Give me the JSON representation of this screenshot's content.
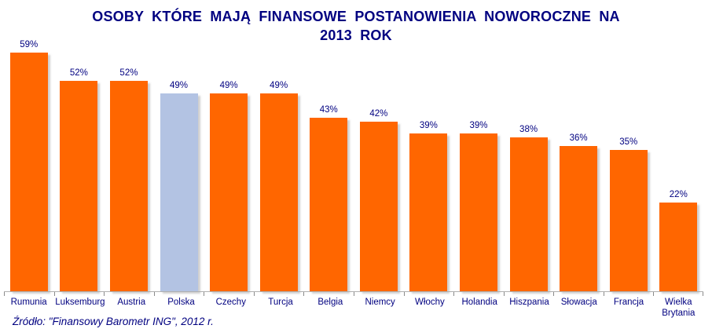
{
  "title": {
    "line1": "OSOBY KTÓRE MAJĄ FINANSOWE POSTANOWIENIA NOWOROCZNE NA",
    "line2": "2013 ROK"
  },
  "source_note": "Źródło: \"Finansowy Barometr ING\", 2012 r.",
  "colors": {
    "bar": "#FF6600",
    "highlighted_bar": "#B3C3E3",
    "text": "#000080",
    "axis": "#B0B0B0"
  },
  "chart_data": {
    "type": "bar",
    "title": "OSOBY KTÓRE MAJĄ FINANSOWE POSTANOWIENIA NOWOROCZNE NA 2013 ROK",
    "categories": [
      "Rumunia",
      "Luksemburg",
      "Austria",
      "Polska",
      "Czechy",
      "Turcja",
      "Belgia",
      "Niemcy",
      "Włochy",
      "Holandia",
      "Hiszpania",
      "Słowacja",
      "Francja",
      "Wielka Brytania"
    ],
    "values": [
      59,
      52,
      52,
      49,
      49,
      49,
      43,
      42,
      39,
      39,
      38,
      36,
      35,
      22
    ],
    "unit": "%",
    "data_labels": [
      "59%",
      "52%",
      "52%",
      "49%",
      "49%",
      "49%",
      "43%",
      "42%",
      "39%",
      "39%",
      "38%",
      "36%",
      "35%",
      "22%"
    ],
    "highlighted_category": "Polska",
    "xlabel": "",
    "ylabel": "",
    "ylim": [
      0,
      63
    ],
    "grid": false,
    "legend": "none",
    "annotation": "Źródło: \"Finansowy Barometr ING\", 2012 r."
  }
}
